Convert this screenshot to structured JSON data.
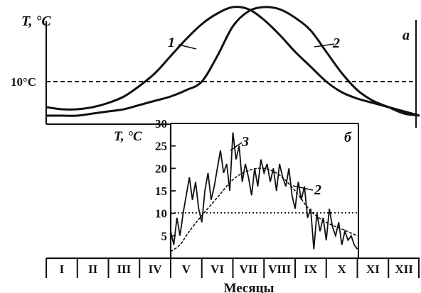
{
  "figure": {
    "x_title": "Месяцы",
    "months": [
      "I",
      "II",
      "III",
      "IV",
      "V",
      "VI",
      "VII",
      "VIII",
      "IX",
      "X",
      "XI",
      "XII"
    ]
  },
  "chart_data": [
    {
      "type": "line",
      "panel_label": "а",
      "ylabel": "T, °C",
      "threshold": {
        "label": "10°C",
        "value": 10
      },
      "x_unit": "month index (0 = start of January, 12 = end of December)",
      "series": [
        {
          "name": "1",
          "x": [
            0,
            0.5,
            1,
            1.5,
            2,
            2.5,
            3,
            3.5,
            4,
            4.5,
            5,
            5.5,
            6,
            6.5,
            7,
            7.5,
            8,
            8.5,
            9,
            9.5,
            10,
            10.5,
            11,
            11.5,
            12
          ],
          "y": [
            4,
            3.5,
            3.5,
            4,
            5,
            6.5,
            9,
            12,
            16,
            20,
            23.5,
            26,
            27.5,
            27,
            24.5,
            21,
            17,
            13.5,
            10,
            7.5,
            6,
            5,
            4,
            3,
            2
          ]
        },
        {
          "name": "2",
          "x": [
            0,
            0.5,
            1,
            1.5,
            2,
            2.5,
            3,
            3.5,
            4,
            4.5,
            5,
            5.5,
            6,
            6.5,
            7,
            7.5,
            8,
            8.5,
            9,
            9.5,
            10,
            10.5,
            11,
            11.5,
            12
          ],
          "y": [
            2,
            2,
            2,
            2.5,
            3,
            3.5,
            4.5,
            5.5,
            6.5,
            8,
            10,
            16,
            23,
            26.5,
            27.5,
            27,
            25,
            22,
            17,
            12,
            8,
            5.5,
            4,
            2.5,
            2
          ]
        }
      ]
    },
    {
      "type": "line",
      "panel_label": "б",
      "ylabel": "T, °C",
      "ylim": [
        0,
        30
      ],
      "yticks": [
        5,
        10,
        15,
        20,
        25,
        30
      ],
      "xlim": [
        4,
        10
      ],
      "threshold": {
        "value": 10
      },
      "series": [
        {
          "name": "2",
          "x": [
            4.0,
            4.3,
            4.6,
            5.0,
            5.5,
            6.0,
            6.5,
            7.0,
            7.5,
            8.0,
            8.5,
            9.0,
            9.5,
            10.0
          ],
          "y": [
            1.5,
            3.0,
            6.0,
            9.5,
            13.5,
            17.5,
            19.5,
            20.0,
            18.5,
            15.0,
            10.5,
            8.0,
            6.5,
            5.0
          ]
        },
        {
          "name": "3",
          "x": [
            4.0,
            4.1,
            4.2,
            4.3,
            4.4,
            4.5,
            4.6,
            4.7,
            4.8,
            4.9,
            5.0,
            5.1,
            5.2,
            5.3,
            5.4,
            5.5,
            5.6,
            5.7,
            5.8,
            5.9,
            6.0,
            6.1,
            6.2,
            6.3,
            6.4,
            6.5,
            6.6,
            6.7,
            6.8,
            6.9,
            7.0,
            7.1,
            7.2,
            7.3,
            7.4,
            7.5,
            7.6,
            7.7,
            7.8,
            7.9,
            8.0,
            8.1,
            8.2,
            8.3,
            8.4,
            8.5,
            8.6,
            8.7,
            8.8,
            8.9,
            9.0,
            9.1,
            9.2,
            9.3,
            9.4,
            9.5,
            9.6,
            9.7,
            9.8,
            9.9,
            10.0
          ],
          "y": [
            6,
            3,
            9,
            5,
            10,
            14,
            18,
            13,
            17,
            11,
            8,
            15,
            19,
            13,
            16,
            20,
            24,
            19,
            21,
            15,
            28,
            22,
            25,
            17,
            21,
            18,
            14,
            20,
            16,
            22,
            19,
            21,
            17,
            20,
            15,
            21,
            18,
            16,
            20,
            14,
            11,
            17,
            13,
            16,
            9,
            11,
            2,
            10,
            6,
            9,
            4,
            11,
            7,
            5,
            8,
            3,
            6,
            4,
            5,
            3,
            2
          ]
        }
      ]
    }
  ]
}
